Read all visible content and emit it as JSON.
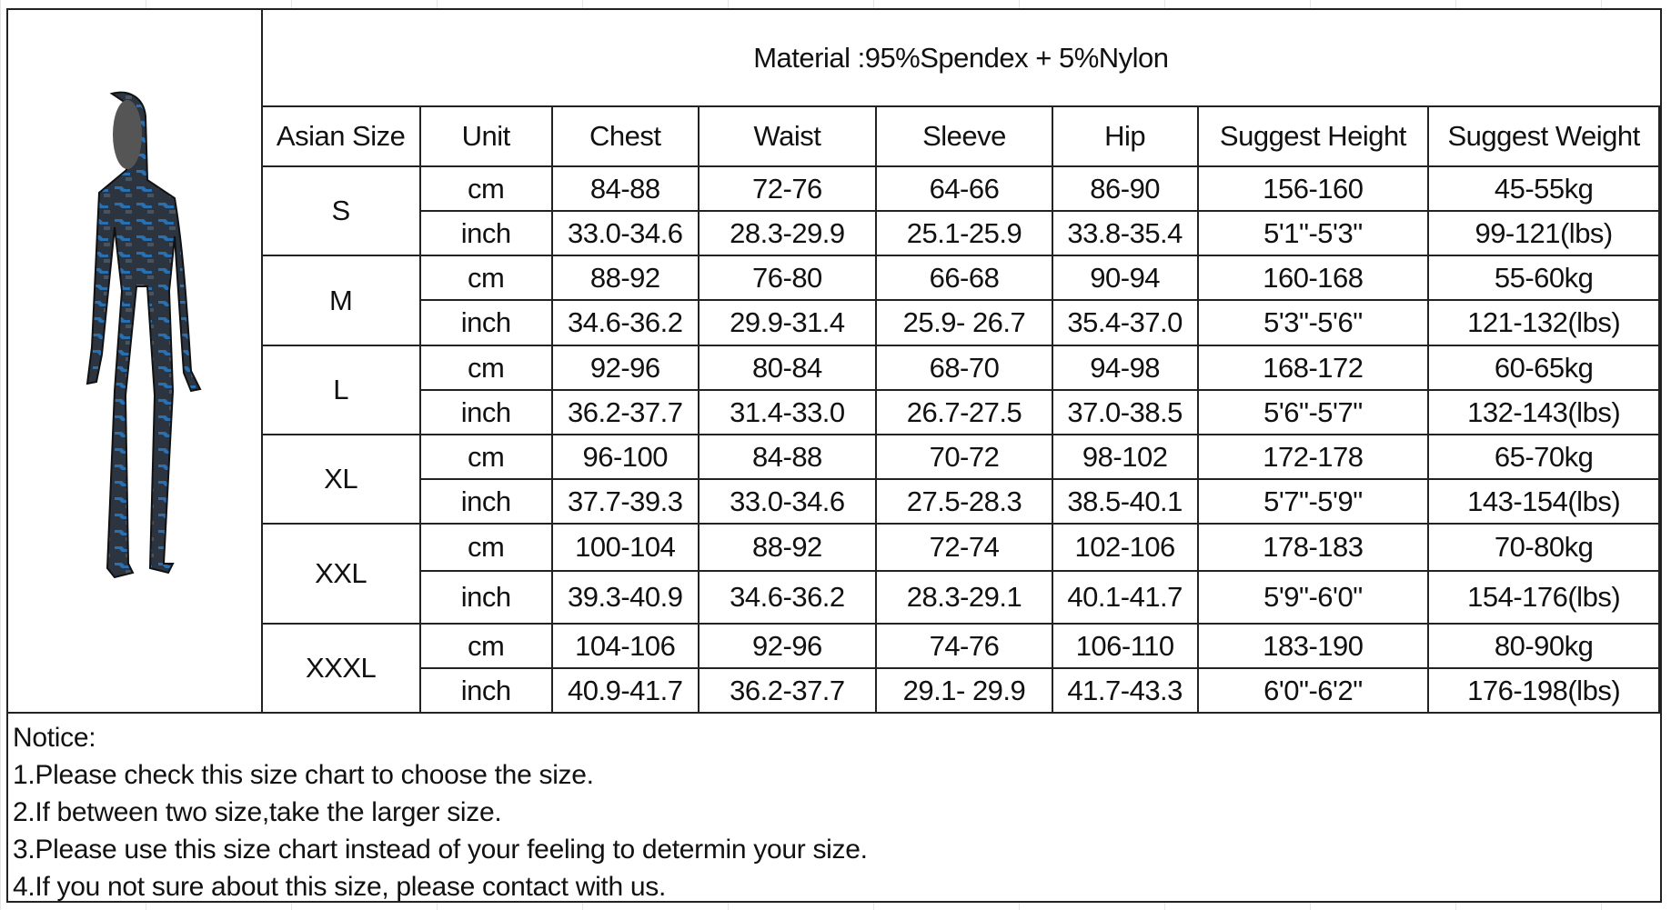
{
  "material": "Material :95%Spendex + 5%Nylon",
  "headers": [
    "Asian Size",
    "Unit",
    "Chest",
    "Waist",
    "Sleeve",
    "Hip",
    "Suggest Height",
    "Suggest Weight"
  ],
  "sizes": [
    {
      "size": "S",
      "rows": [
        [
          "cm",
          "84-88",
          "72-76",
          "64-66",
          "86-90",
          "156-160",
          "45-55kg"
        ],
        [
          "inch",
          "33.0-34.6",
          "28.3-29.9",
          "25.1-25.9",
          "33.8-35.4",
          "5'1\"-5'3\"",
          "99-121(lbs)"
        ]
      ]
    },
    {
      "size": "M",
      "rows": [
        [
          "cm",
          "88-92",
          "76-80",
          "66-68",
          "90-94",
          "160-168",
          "55-60kg"
        ],
        [
          "inch",
          "34.6-36.2",
          "29.9-31.4",
          "25.9- 26.7",
          "35.4-37.0",
          "5'3\"-5'6\"",
          "121-132(lbs)"
        ]
      ]
    },
    {
      "size": "L",
      "rows": [
        [
          "cm",
          "92-96",
          "80-84",
          "68-70",
          "94-98",
          "168-172",
          "60-65kg"
        ],
        [
          "inch",
          "36.2-37.7",
          "31.4-33.0",
          "26.7-27.5",
          "37.0-38.5",
          "5'6\"-5'7\"",
          "132-143(lbs)"
        ]
      ]
    },
    {
      "size": "XL",
      "rows": [
        [
          "cm",
          "96-100",
          "84-88",
          "70-72",
          "98-102",
          "172-178",
          "65-70kg"
        ],
        [
          "inch",
          "37.7-39.3",
          "33.0-34.6",
          "27.5-28.3",
          "38.5-40.1",
          "5'7\"-5'9\"",
          "143-154(lbs)"
        ]
      ]
    },
    {
      "size": "XXL",
      "rows": [
        [
          "cm",
          "100-104",
          "88-92",
          "72-74",
          "102-106",
          "178-183",
          "70-80kg"
        ],
        [
          "inch",
          "39.3-40.9",
          "34.6-36.2",
          "28.3-29.1",
          "40.1-41.7",
          "5'9\"-6'0\"",
          "154-176(lbs)"
        ]
      ]
    },
    {
      "size": "XXXL",
      "rows": [
        [
          "cm",
          "104-106",
          "92-96",
          "74-76",
          "106-110",
          "183-190",
          "80-90kg"
        ],
        [
          "inch",
          "40.9-41.7",
          "36.2-37.7",
          "29.1- 29.9",
          "41.7-43.3",
          "6'0\"-6'2\"",
          "176-198(lbs)"
        ]
      ]
    }
  ],
  "notice": [
    "Notice:",
    "1.Please check this size chart to choose the size.",
    "2.If between two size,take the larger size.",
    "3.Please use this size chart instead of your feeling to determin your size.",
    "4.If you not sure about this size, please contact with us."
  ],
  "product_image": "hooded-wetsuit-blue-camo"
}
